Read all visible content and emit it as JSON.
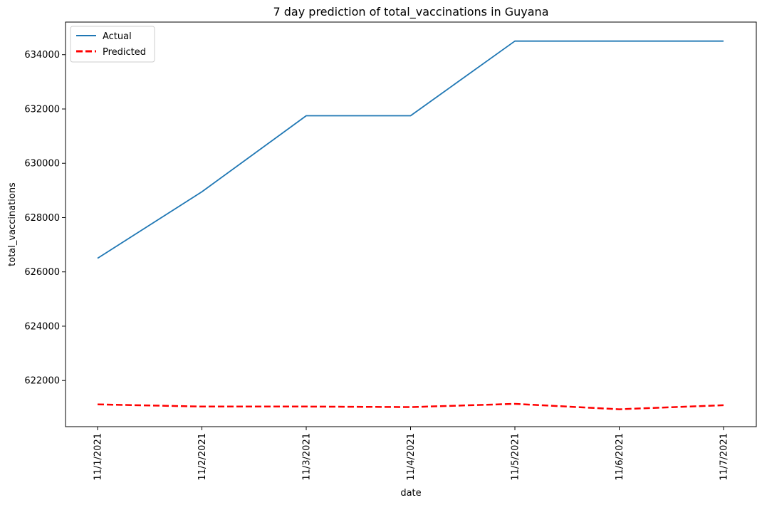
{
  "chart_data": {
    "type": "line",
    "title": "7 day prediction of total_vaccinations in Guyana",
    "xlabel": "date",
    "ylabel": "total_vaccinations",
    "categories": [
      "11/1/2021",
      "11/2/2021",
      "11/3/2021",
      "11/4/2021",
      "11/5/2021",
      "11/6/2021",
      "11/7/2021"
    ],
    "ylim": [
      620300,
      635200
    ],
    "yticks": [
      622000,
      624000,
      626000,
      628000,
      630000,
      632000,
      634000
    ],
    "legend_position": "upper-left",
    "grid": false,
    "series": [
      {
        "name": "Actual",
        "color": "#1f77b4",
        "style": "solid",
        "values": [
          626500,
          628950,
          631750,
          631750,
          634500,
          634500,
          634500
        ]
      },
      {
        "name": "Predicted",
        "color": "#ff0000",
        "style": "dashed",
        "values": [
          621120,
          621040,
          621040,
          621020,
          621140,
          620940,
          621090
        ]
      }
    ]
  }
}
